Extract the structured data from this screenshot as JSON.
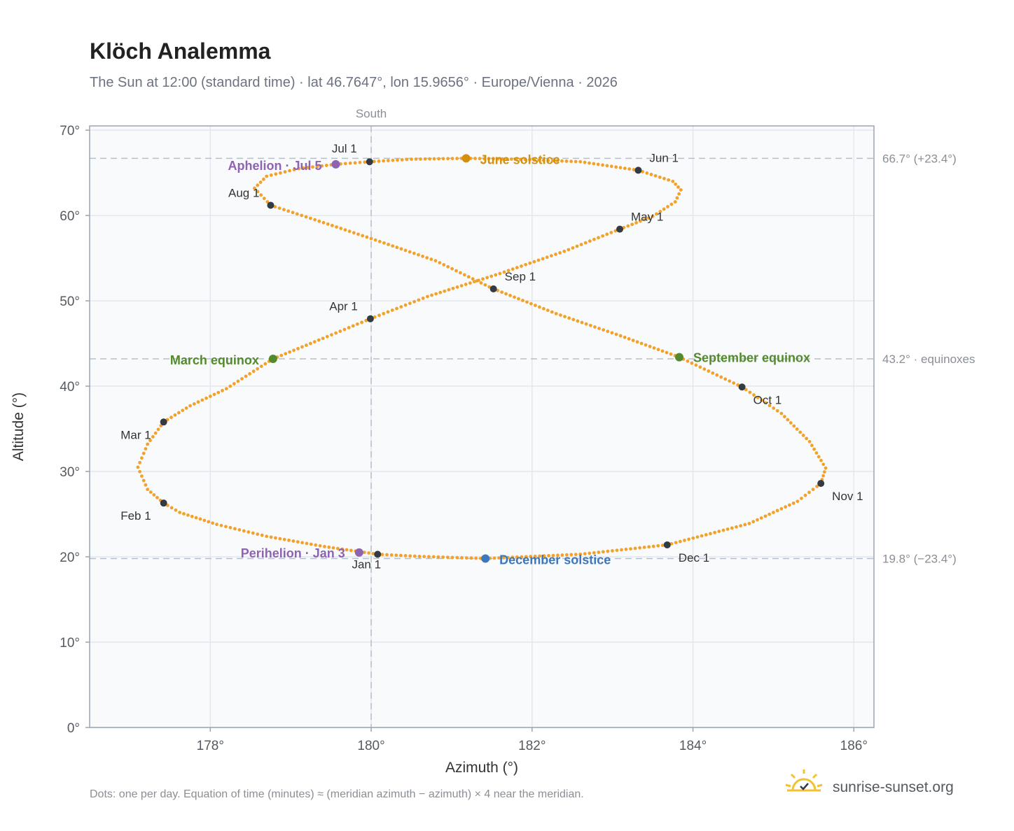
{
  "header": {
    "title": "Klöch Analemma",
    "subtitle": "The Sun at 12:00 (standard time) · lat 46.7647°, lon 15.9656° · Europe/Vienna · 2026"
  },
  "footer": {
    "note": "Dots: one per day. Equation of time (minutes) ≈ (meridian azimuth − azimuth) × 4 near the meridian.",
    "brand": "sunrise-sunset.org"
  },
  "colors": {
    "path": "#f2a22a",
    "month_marker": "#333a44",
    "equinox": "#548a2e",
    "june_solstice": "#d4900a",
    "december_solstice": "#3b78c0",
    "apsis": "#8e63b2",
    "reference_line": "#b7c0ca",
    "plot_bg": "#f8fafc",
    "grid": "#e3e8ee"
  },
  "chart_data": {
    "type": "scatter",
    "title": "Klöch Analemma",
    "xlabel": "Azimuth (°)",
    "ylabel": "Altitude (°)",
    "xlim": [
      176.5,
      186.25
    ],
    "ylim": [
      0,
      70.5
    ],
    "xticks": [
      "178°",
      "180°",
      "182°",
      "184°",
      "186°"
    ],
    "xtick_values": [
      178,
      180,
      182,
      184,
      186
    ],
    "yticks": [
      "0°",
      "10°",
      "20°",
      "30°",
      "40°",
      "50°",
      "60°",
      "70°"
    ],
    "ytick_values": [
      0,
      10,
      20,
      30,
      40,
      50,
      60,
      70
    ],
    "grid": true,
    "meridian": {
      "azimuth": 180,
      "label": "South"
    },
    "reference_lines": [
      {
        "altitude": 66.7,
        "label": "66.7° (+23.4°)"
      },
      {
        "altitude": 43.2,
        "label": "43.2° · equinoxes"
      },
      {
        "altitude": 19.8,
        "label": "19.8° (−23.4°)"
      }
    ],
    "month_markers": [
      {
        "label": "Jan 1",
        "azimuth": 180.08,
        "altitude": 20.3
      },
      {
        "label": "Feb 1",
        "azimuth": 177.42,
        "altitude": 26.3
      },
      {
        "label": "Mar 1",
        "azimuth": 177.42,
        "altitude": 35.8
      },
      {
        "label": "Apr 1",
        "azimuth": 179.99,
        "altitude": 47.9
      },
      {
        "label": "May 1",
        "azimuth": 183.09,
        "altitude": 58.4
      },
      {
        "label": "Jun 1",
        "azimuth": 183.32,
        "altitude": 65.3
      },
      {
        "label": "Jul 1",
        "azimuth": 179.98,
        "altitude": 66.3
      },
      {
        "label": "Aug 1",
        "azimuth": 178.75,
        "altitude": 61.2
      },
      {
        "label": "Sep 1",
        "azimuth": 181.52,
        "altitude": 51.4
      },
      {
        "label": "Oct 1",
        "azimuth": 184.61,
        "altitude": 39.9
      },
      {
        "label": "Nov 1",
        "azimuth": 185.59,
        "altitude": 28.6
      },
      {
        "label": "Dec 1",
        "azimuth": 183.68,
        "altitude": 21.4
      }
    ],
    "events": [
      {
        "label": "March equinox",
        "azimuth": 178.78,
        "altitude": 43.2,
        "color": "#548a2e"
      },
      {
        "label": "June solstice",
        "azimuth": 181.18,
        "altitude": 66.7,
        "color": "#d4900a"
      },
      {
        "label": "September equinox",
        "azimuth": 183.83,
        "altitude": 43.4,
        "color": "#548a2e"
      },
      {
        "label": "December solstice",
        "azimuth": 181.42,
        "altitude": 19.8,
        "color": "#3b78c0"
      },
      {
        "label": "Perihelion · Jan 3",
        "azimuth": 179.85,
        "altitude": 20.5,
        "color": "#8e63b2"
      },
      {
        "label": "Aphelion · Jul 5",
        "azimuth": 179.56,
        "altitude": 66.0,
        "color": "#8e63b2"
      }
    ],
    "series": [
      {
        "points": [
          [
            180.08,
            20.3
          ],
          [
            179.42,
            21.2
          ],
          [
            178.7,
            22.4
          ],
          [
            178.08,
            23.8
          ],
          [
            177.62,
            25.2
          ],
          [
            177.42,
            26.3
          ],
          [
            177.22,
            27.9
          ],
          [
            177.1,
            30.5
          ],
          [
            177.22,
            33.2
          ],
          [
            177.42,
            35.8
          ],
          [
            177.75,
            37.7
          ],
          [
            178.2,
            39.7
          ],
          [
            178.78,
            43.2
          ],
          [
            179.4,
            45.6
          ],
          [
            179.99,
            47.9
          ],
          [
            180.7,
            50.5
          ],
          [
            181.6,
            53.2
          ],
          [
            182.4,
            55.8
          ],
          [
            183.09,
            58.4
          ],
          [
            183.5,
            59.9
          ],
          [
            183.78,
            61.6
          ],
          [
            183.85,
            63.0
          ],
          [
            183.75,
            64.0
          ],
          [
            183.32,
            65.3
          ],
          [
            182.6,
            66.3
          ],
          [
            181.8,
            66.6
          ],
          [
            181.18,
            66.7
          ],
          [
            180.5,
            66.6
          ],
          [
            179.98,
            66.3
          ],
          [
            179.56,
            66.0
          ],
          [
            179.1,
            65.5
          ],
          [
            178.7,
            64.6
          ],
          [
            178.55,
            63.2
          ],
          [
            178.75,
            61.2
          ],
          [
            179.3,
            59.5
          ],
          [
            180.0,
            57.3
          ],
          [
            180.8,
            54.7
          ],
          [
            181.52,
            51.4
          ],
          [
            182.3,
            48.5
          ],
          [
            183.1,
            45.9
          ],
          [
            183.83,
            43.4
          ],
          [
            184.61,
            39.9
          ],
          [
            185.1,
            36.8
          ],
          [
            185.45,
            33.5
          ],
          [
            185.65,
            30.4
          ],
          [
            185.59,
            28.6
          ],
          [
            185.3,
            26.5
          ],
          [
            184.7,
            23.9
          ],
          [
            183.68,
            21.4
          ],
          [
            182.6,
            20.3
          ],
          [
            181.42,
            19.8
          ],
          [
            180.6,
            20.05
          ],
          [
            180.08,
            20.3
          ]
        ]
      }
    ]
  }
}
